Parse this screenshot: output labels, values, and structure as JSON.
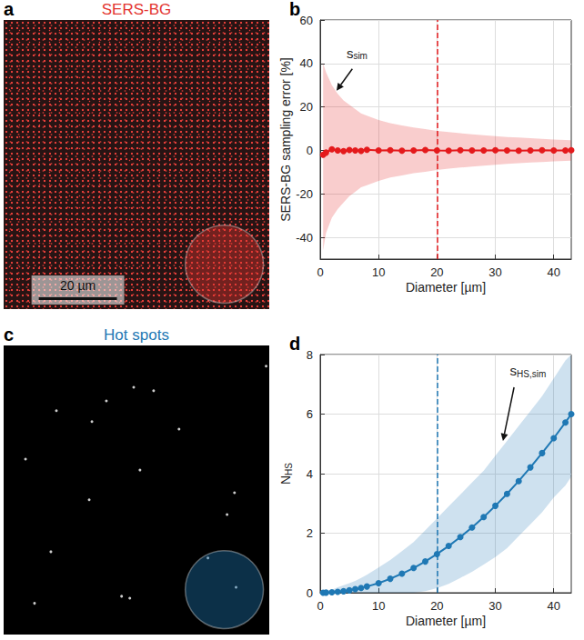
{
  "chart_data": [
    {
      "panel": "a",
      "type": "image",
      "title": "SERS-BG",
      "color": "#e3342f",
      "xlim": [
        0,
        68
      ],
      "ylim": [
        0,
        74
      ],
      "tick_labels": false,
      "roi": {
        "center": [
          56.5,
          62.5
        ],
        "diameter": 20
      },
      "scale_bar": {
        "length": 20,
        "label": "20 µm"
      }
    },
    {
      "panel": "b",
      "type": "line",
      "xlabel": "Diameter [µm]",
      "ylabel": "SERS-BG sampling error [%]",
      "xlim": [
        0,
        43
      ],
      "xticks": [
        0,
        10,
        20,
        30,
        40
      ],
      "ylim": [
        -50,
        60
      ],
      "yticks": [
        -40,
        -20,
        0,
        20,
        40,
        60
      ],
      "grid": true,
      "color": "#e41a1c",
      "marker": "circle",
      "x": [
        0.5,
        1,
        2,
        3,
        4,
        5,
        6,
        7,
        8,
        10,
        12,
        14,
        16,
        18,
        20,
        22,
        24,
        26,
        28,
        30,
        32,
        34,
        36,
        38,
        40,
        42,
        43
      ],
      "values": [
        -2,
        -1,
        0.5,
        0,
        -0.3,
        0.2,
        0,
        -0.2,
        0.3,
        0,
        0.1,
        -0.1,
        0,
        0.2,
        0,
        -0.1,
        0.1,
        0,
        0,
        0.1,
        0,
        -0.1,
        0,
        0.1,
        0,
        0,
        0.1
      ],
      "band": {
        "label": {
          "base": "s",
          "sub": "sim"
        },
        "upper": [
          40,
          36,
          30,
          26,
          23,
          21,
          19,
          17,
          16,
          14,
          12.5,
          11.5,
          10.5,
          9.8,
          9,
          8.4,
          7.9,
          7.4,
          7,
          6.6,
          6.2,
          5.9,
          5.6,
          5.3,
          5,
          4.8,
          4.7
        ],
        "lower": [
          -46,
          -38,
          -31,
          -27,
          -24,
          -21,
          -19,
          -17,
          -16,
          -14,
          -12.5,
          -11.5,
          -10.5,
          -9.8,
          -9,
          -8.4,
          -7.9,
          -7.4,
          -7,
          -6.6,
          -6.2,
          -5.9,
          -5.6,
          -5.3,
          -5,
          -4.8,
          -4.7
        ]
      },
      "vline": {
        "x": 20,
        "line_style": "dashed"
      }
    },
    {
      "panel": "c",
      "type": "scatter",
      "title": "Hot spots",
      "color": "#1f78b4",
      "xlim": [
        0,
        68
      ],
      "ylim": [
        0,
        74
      ],
      "tick_labels": false,
      "x": [
        67.2,
        33.3,
        38.4,
        26.3,
        13.5,
        22.6,
        44.9,
        5.6,
        34.9,
        59.1,
        21.9,
        57.2,
        12.1,
        52.3,
        59.5,
        30.2,
        32.3,
        7.9
      ],
      "y": [
        5.3,
        10.7,
        11.6,
        14.2,
        16.7,
        19.5,
        21.4,
        29.1,
        31.9,
        37.7,
        39.5,
        43.3,
        52.8,
        54.4,
        61.9,
        64.2,
        64.7,
        66.0
      ],
      "roi": {
        "center": [
          56.5,
          62.5
        ],
        "diameter": 20
      }
    },
    {
      "panel": "d",
      "type": "line",
      "xlabel": "Diameter [µm]",
      "ylabel": {
        "base": "N",
        "sub": "HS"
      },
      "xlim": [
        0,
        43
      ],
      "xticks": [
        0,
        10,
        20,
        30,
        40
      ],
      "ylim": [
        0,
        8
      ],
      "yticks": [
        0,
        2,
        4,
        6,
        8
      ],
      "grid": true,
      "color": "#1f78b4",
      "marker": "circle",
      "x": [
        0.5,
        1,
        2,
        3,
        4,
        5,
        6,
        7,
        8,
        10,
        12,
        14,
        16,
        18,
        20,
        22,
        24,
        26,
        28,
        30,
        32,
        34,
        36,
        38,
        40,
        42,
        43
      ],
      "values": [
        0,
        0.003,
        0.013,
        0.03,
        0.05,
        0.08,
        0.12,
        0.16,
        0.21,
        0.32,
        0.47,
        0.64,
        0.83,
        1.05,
        1.3,
        1.57,
        1.87,
        2.19,
        2.54,
        2.92,
        3.32,
        3.75,
        4.21,
        4.69,
        5.19,
        5.72,
        6
      ],
      "band": {
        "label": {
          "base": "s",
          "sub": "HS,sim"
        },
        "upper": [
          0.02,
          0.05,
          0.1,
          0.18,
          0.25,
          0.32,
          0.4,
          0.5,
          0.6,
          0.85,
          1.1,
          1.4,
          1.7,
          2.1,
          2.5,
          2.9,
          3.3,
          3.7,
          4.1,
          4.6,
          5.1,
          5.6,
          6.1,
          6.6,
          7.2,
          7.8,
          8
        ],
        "lower": [
          0,
          0,
          0,
          0,
          0,
          0,
          0,
          0,
          0,
          0,
          0,
          0,
          0,
          0.05,
          0.15,
          0.3,
          0.5,
          0.7,
          0.95,
          1.2,
          1.5,
          1.9,
          2.3,
          2.7,
          3.2,
          3.6,
          3.9
        ]
      },
      "vline": {
        "x": 20,
        "line_style": "dashed"
      }
    }
  ]
}
